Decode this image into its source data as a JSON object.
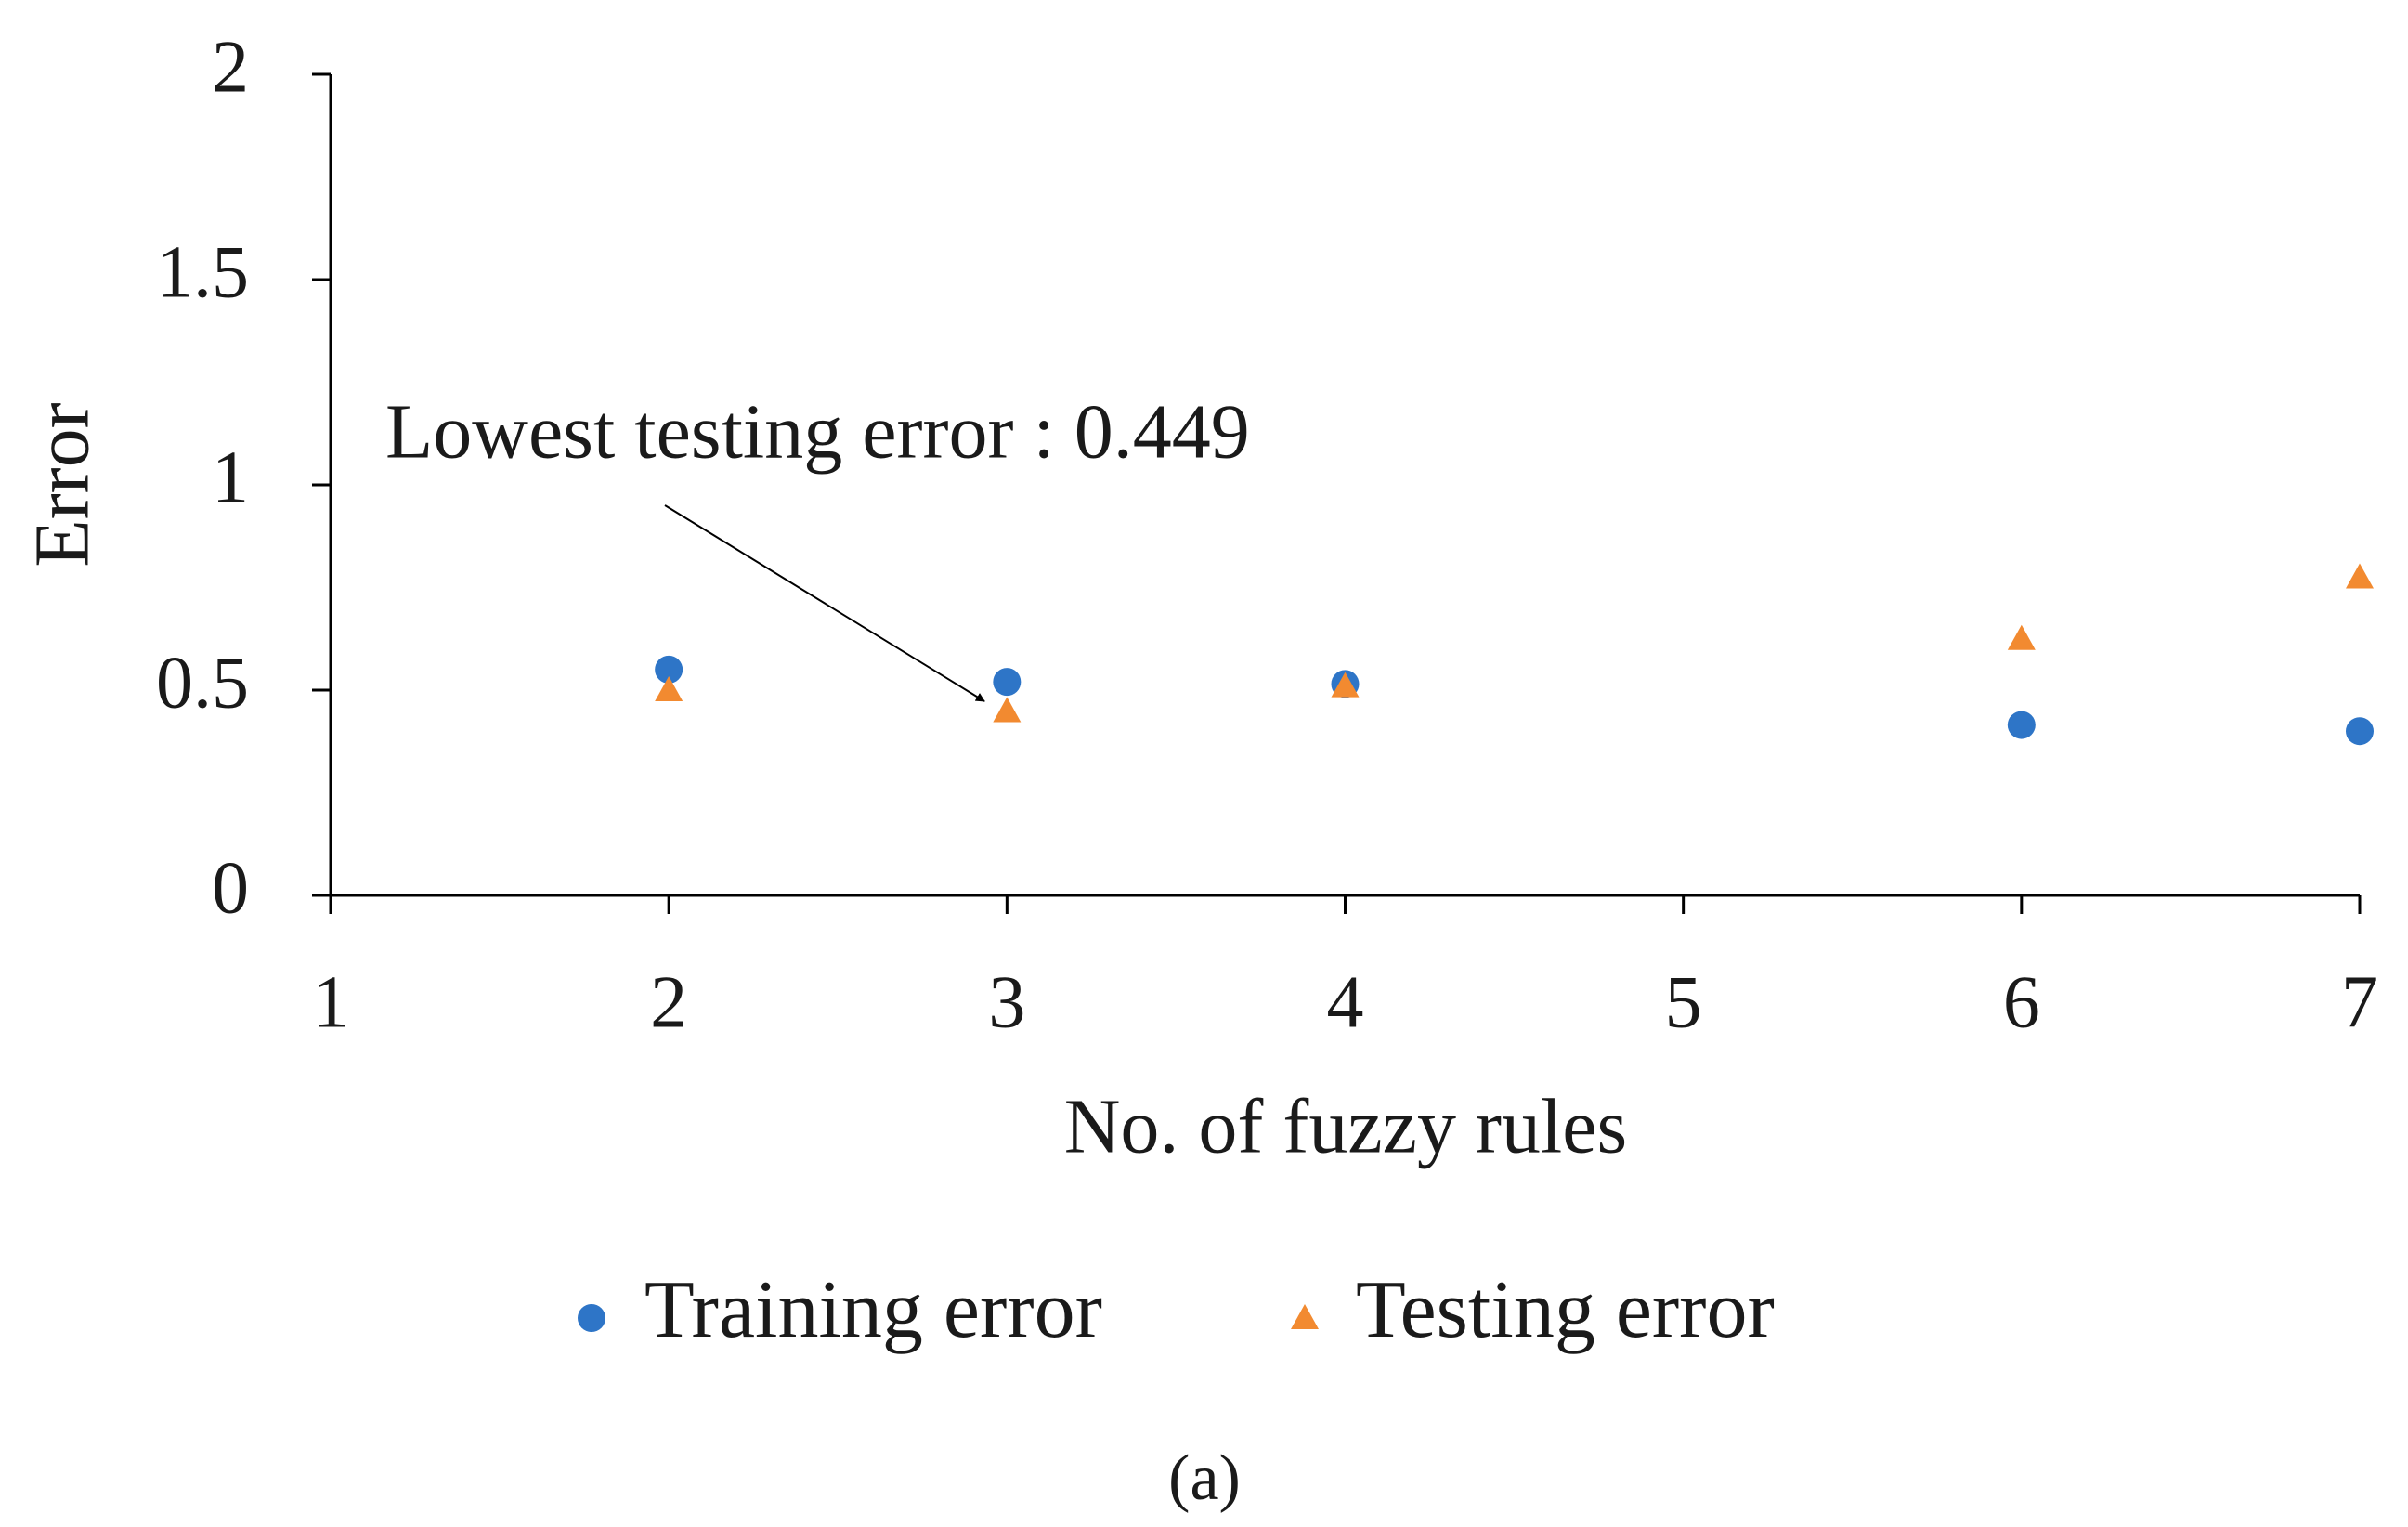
{
  "chart_data": {
    "type": "scatter",
    "xlabel": "No. of fuzzy rules",
    "ylabel": "Error",
    "annotation": "Lowest testing error : 0.449",
    "caption": "(a)",
    "xlim": [
      1,
      7
    ],
    "xticks": [
      1,
      2,
      3,
      4,
      5,
      6,
      7
    ],
    "ylim": [
      0,
      2
    ],
    "yticks": [
      0,
      0.5,
      1,
      1.5,
      2
    ],
    "grid": false,
    "legend": "bottom",
    "series": [
      {
        "name": "Training error",
        "color": "#2e75c7",
        "marker": "circle",
        "x": [
          2,
          3,
          4,
          6,
          7
        ],
        "values": [
          0.55,
          0.52,
          0.515,
          0.415,
          0.4
        ]
      },
      {
        "name": "Testing error",
        "color": "#f28a30",
        "marker": "triangle",
        "x": [
          2,
          3,
          4,
          6,
          7
        ],
        "values": [
          0.5,
          0.449,
          0.51,
          0.625,
          0.775
        ]
      }
    ]
  }
}
